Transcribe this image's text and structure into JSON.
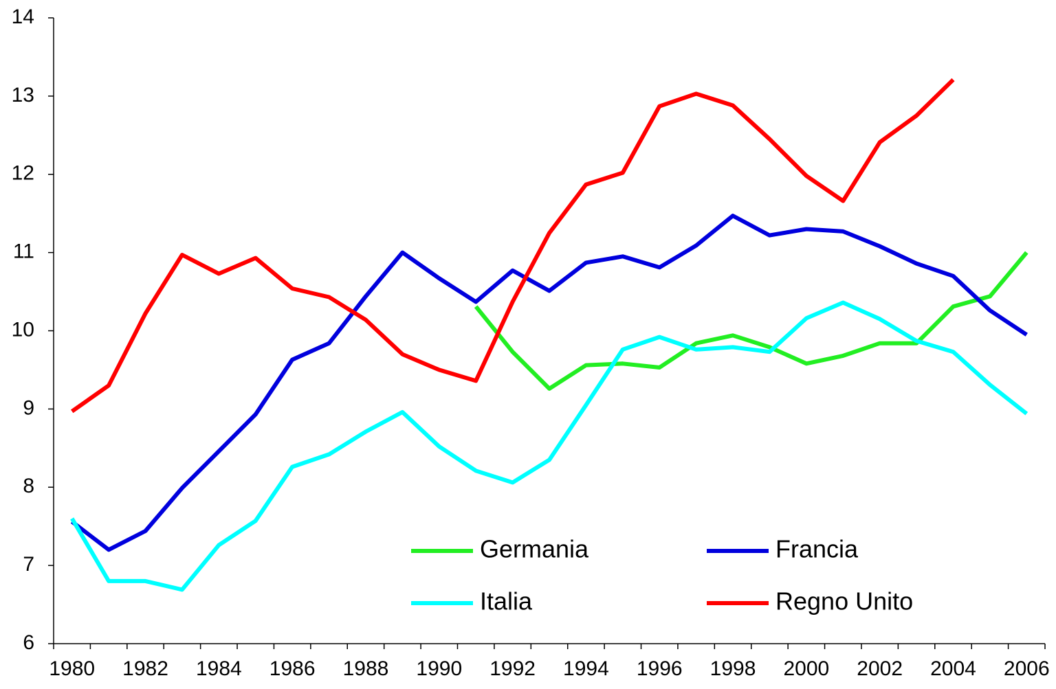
{
  "chart_data": {
    "type": "line",
    "categories": [
      "1980",
      null,
      "1982",
      null,
      "1984",
      null,
      "1986",
      null,
      "1988",
      null,
      "1990",
      null,
      "1992",
      null,
      "1994",
      null,
      "1996",
      null,
      "1998",
      null,
      "2000",
      null,
      "2002",
      null,
      "2004",
      null,
      "2006"
    ],
    "series": [
      {
        "name": "Germania",
        "color": "#22ee22",
        "values": [
          null,
          null,
          null,
          null,
          null,
          null,
          null,
          null,
          null,
          null,
          null,
          10.31,
          9.73,
          9.26,
          9.56,
          9.58,
          9.53,
          9.84,
          9.94,
          9.79,
          9.58,
          9.68,
          9.84,
          9.84,
          10.31,
          10.44,
          11.0
        ]
      },
      {
        "name": "Francia",
        "color": "#0000dd",
        "values": [
          7.56,
          7.2,
          7.44,
          7.99,
          8.46,
          8.93,
          9.63,
          9.84,
          10.44,
          11.0,
          10.67,
          10.37,
          10.77,
          10.51,
          10.87,
          10.95,
          10.81,
          11.09,
          11.47,
          11.22,
          11.3,
          11.27,
          11.08,
          10.86,
          10.7,
          10.26,
          9.95
        ]
      },
      {
        "name": "Italia",
        "color": "#00ffff",
        "values": [
          7.6,
          6.8,
          6.8,
          6.69,
          7.26,
          7.57,
          8.26,
          8.42,
          8.71,
          8.96,
          8.52,
          8.21,
          8.06,
          8.35,
          9.05,
          9.76,
          9.92,
          9.76,
          9.79,
          9.73,
          10.16,
          10.36,
          10.15,
          9.87,
          9.73,
          9.31,
          8.94
        ]
      },
      {
        "name": "Regno Unito",
        "color": "#ff0000",
        "values": [
          8.97,
          9.3,
          10.22,
          10.97,
          10.73,
          10.93,
          10.54,
          10.43,
          10.14,
          9.7,
          9.5,
          9.36,
          10.37,
          11.25,
          11.87,
          12.02,
          12.87,
          13.03,
          12.88,
          12.45,
          11.98,
          11.66,
          12.41,
          12.75,
          13.21,
          null,
          null
        ]
      }
    ],
    "ylim": [
      6,
      14
    ],
    "yticks": [
      6,
      7,
      8,
      9,
      10,
      11,
      12,
      13,
      14
    ],
    "grid": false,
    "legend": "lower right"
  }
}
